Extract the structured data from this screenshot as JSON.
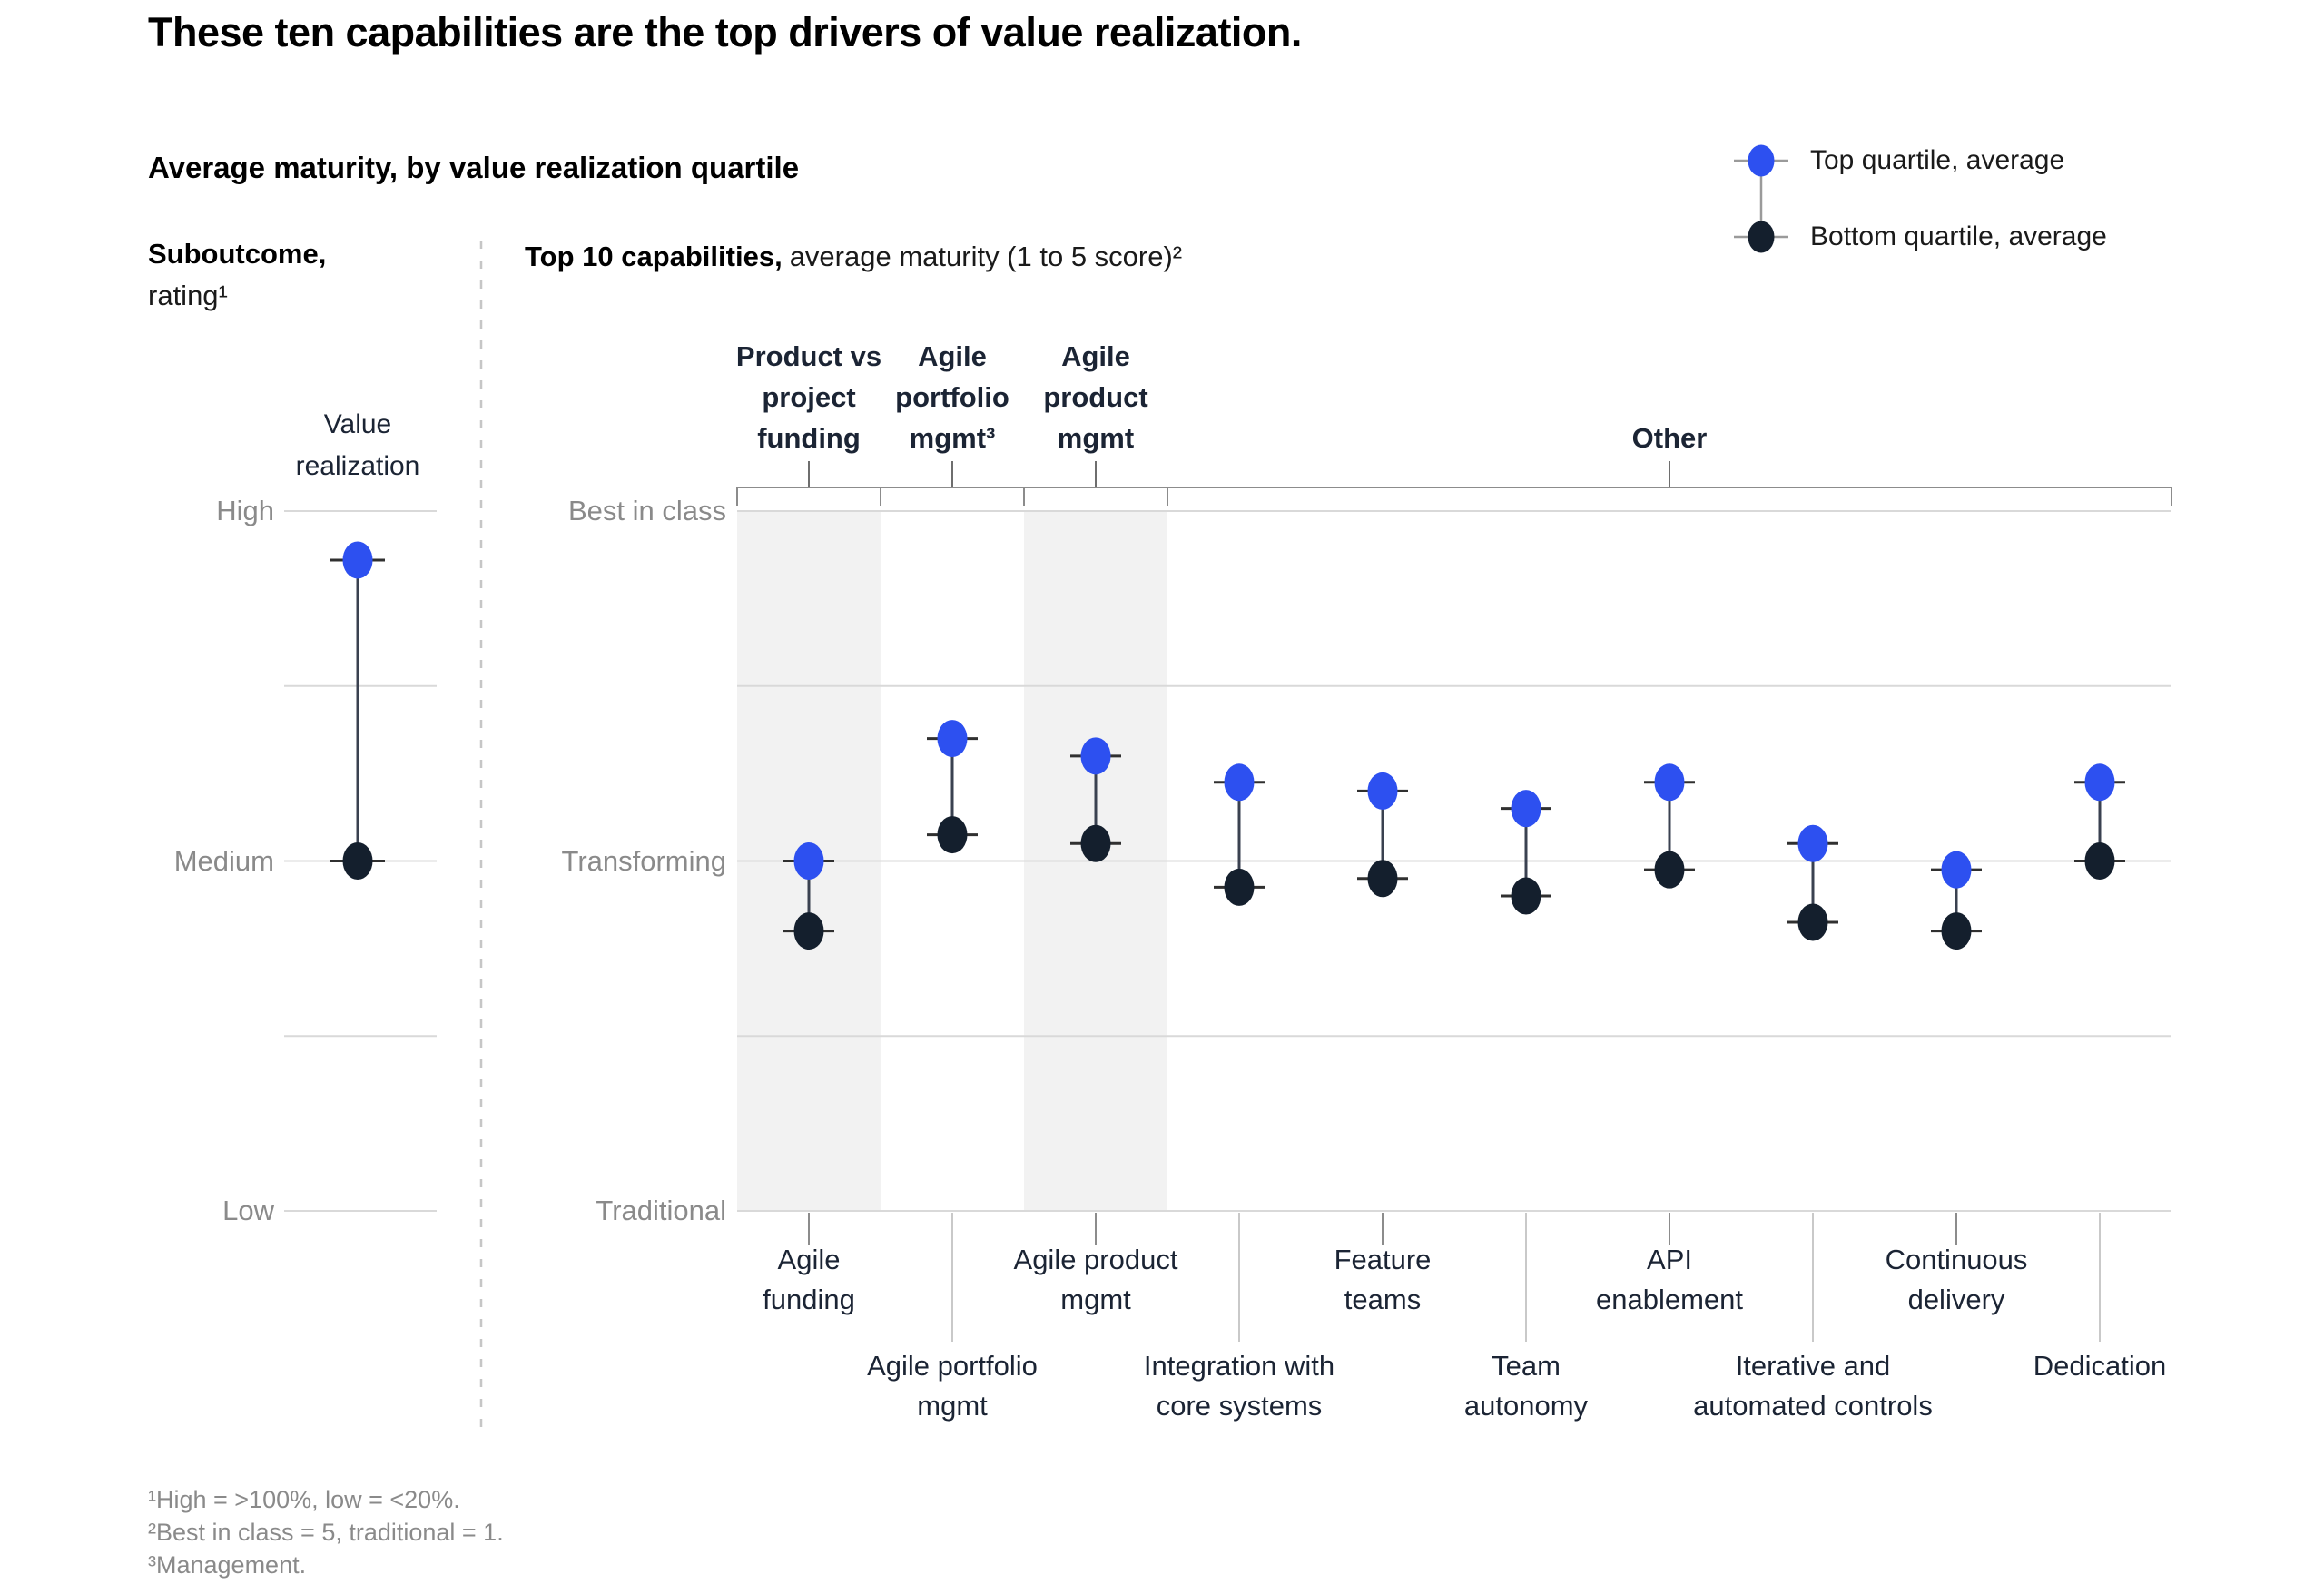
{
  "page": {
    "title": "These ten capabilities are the top drivers of value realization."
  },
  "subtitle": "Average maturity, by value realization quartile",
  "legend": {
    "items": [
      {
        "label": "Top quartile, average",
        "color": "#2d50f0"
      },
      {
        "label": "Bottom quartile, average",
        "color": "#141f2d"
      }
    ]
  },
  "left_panel": {
    "heading_bold": "Suboutcome,",
    "heading_rest": "rating¹",
    "series_label": "Value\nrealization"
  },
  "right_panel": {
    "heading_bold": "Top 10 capabilities,",
    "heading_rest": "average maturity (1 to 5 score)²"
  },
  "footnotes": [
    "¹High = >100%, low = <20%.",
    "²Best in class = 5, traditional = 1.",
    "³Management."
  ],
  "colors": {
    "blue": "#2d50f0",
    "dark": "#141f2d",
    "grid": "#d9d9d9",
    "band": "#f2f2f2",
    "bracket": "#8c8c8c",
    "tick": "#6e6e6e",
    "leader": "#c9c9c9",
    "whisker": "#303030",
    "connector": "#3a4150",
    "legend_line": "#9a9a9a",
    "divider": "#c6c6c6",
    "gray_text": "#8a8a8a",
    "navy_text": "#1b2434"
  },
  "chart_data": [
    {
      "type": "dumbbell",
      "title": "Value realization, suboutcome rating",
      "yticks": [
        {
          "label": "High",
          "value": 1.0
        },
        {
          "label": "Medium",
          "value": 0.5
        },
        {
          "label": "Low",
          "value": 0.0
        }
      ],
      "scale_note": "0–1 scale where Low = 0, Medium = 0.5, High = 1; unlabeled gridlines at 0.25 and 0.75",
      "series": [
        {
          "name": "Top quartile, average",
          "value": 0.93
        },
        {
          "name": "Bottom quartile, average",
          "value": 0.5
        }
      ]
    },
    {
      "type": "dumbbell",
      "title": "Top 10 capabilities, average maturity (1 to 5 score)",
      "ylim": [
        1,
        5
      ],
      "grid": true,
      "maturity_ticks": [
        {
          "label": "Best in class",
          "score": 5
        },
        {
          "label": "Transforming",
          "score": 3
        },
        {
          "label": "Traditional",
          "score": 1
        }
      ],
      "categories": [
        "Agile\nfunding",
        "Agile portfolio\nmgmt",
        "Agile product\nmgmt",
        "Integration with\ncore systems",
        "Feature\nteams",
        "Team\nautonomy",
        "API\nenablement",
        "Iterative and\nautomated controls",
        "Continuous\ndelivery",
        "Dedication"
      ],
      "category_label_rows": [
        1,
        2,
        1,
        2,
        1,
        2,
        1,
        2,
        1,
        2
      ],
      "series": [
        {
          "name": "Top quartile, average",
          "values": [
            3.0,
            3.7,
            3.6,
            3.45,
            3.4,
            3.3,
            3.45,
            3.1,
            2.95,
            3.45
          ]
        },
        {
          "name": "Bottom quartile, average",
          "values": [
            2.6,
            3.15,
            3.1,
            2.85,
            2.9,
            2.8,
            2.95,
            2.65,
            2.6,
            3.0
          ]
        }
      ],
      "groups": [
        {
          "label": "Product vs\nproject\nfunding",
          "span": [
            0,
            1
          ],
          "highlighted": true
        },
        {
          "label": "Agile\nportfolio\nmgmt³",
          "span": [
            1,
            2
          ],
          "highlighted": false
        },
        {
          "label": "Agile\nproduct\nmgmt",
          "span": [
            2,
            3
          ],
          "highlighted": true
        },
        {
          "label": "Other",
          "span": [
            3,
            10
          ],
          "highlighted": false
        }
      ]
    }
  ]
}
